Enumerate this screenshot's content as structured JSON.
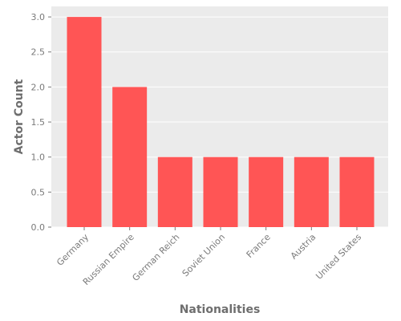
{
  "chart_data": {
    "type": "bar",
    "title": "",
    "xlabel": "Nationalities",
    "ylabel": "Actor Count",
    "categories": [
      "Germany",
      "Russian Empire",
      "German Reich",
      "Soviet Union",
      "France",
      "Austria",
      "United States"
    ],
    "values": [
      3,
      2,
      1,
      1,
      1,
      1,
      1
    ],
    "ylim": [
      0,
      3.15
    ],
    "yticks": [
      "0.0",
      "0.5",
      "1.0",
      "1.5",
      "2.0",
      "2.5",
      "3.0"
    ],
    "grid": true,
    "legend": "none",
    "colors": {
      "bar": "#ff5555",
      "plot_background": "#ebebeb",
      "grid": "#ffffff",
      "text": "#7a7a7a"
    }
  }
}
